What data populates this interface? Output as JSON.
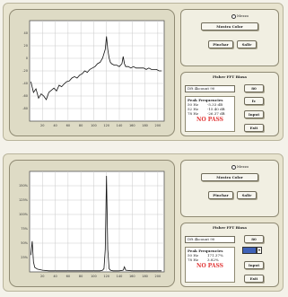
{
  "panels": [
    {
      "scope": {
        "mode_label": "Mezzo",
        "color_button": "Mostra Color",
        "left_button": "Pinchar",
        "right_button": "Salir"
      },
      "fft": {
        "title": "Fisher FFT Biasa",
        "select_value": "Dft 4kcount 90",
        "side_buttons": [
          "80",
          "fc",
          "Input",
          "Exit"
        ],
        "peaks_header": "Peak Frequencies",
        "peaks": [
          {
            "freq": "50 Hz",
            "value": "-5.33 dB"
          },
          {
            "freq": "52 Hz",
            "value": "-15.40 dB"
          },
          {
            "freq": "78 Hz",
            "value": "-26.37 dB"
          }
        ],
        "status": "NO PASS"
      },
      "chart_data": {
        "type": "line",
        "ylabel": "",
        "xlabel": "",
        "xticks": [
          "20",
          "40",
          "60",
          "80",
          "100",
          "120",
          "140",
          "160",
          "180",
          "200"
        ],
        "yticks": [
          "40",
          "20",
          "0",
          "-20",
          "-40",
          "-60",
          "-80"
        ],
        "xlim": [
          0,
          210
        ],
        "ylim": [
          -90,
          50
        ],
        "grid": true,
        "series": [
          {
            "x": [
              2,
              6,
              10,
              14,
              18,
              22,
              26,
              30,
              34,
              38,
              42,
              46,
              50,
              54,
              58,
              62,
              66,
              70,
              74,
              78,
              82,
              86,
              90,
              94,
              98,
              102,
              106,
              110,
              114,
              118,
              120,
              122,
              124,
              126,
              128,
              132,
              136,
              140,
              144,
              146,
              148,
              150,
              154,
              158,
              162,
              166,
              170,
              174,
              178,
              182,
              186,
              190,
              194,
              198,
              202,
              206
            ],
            "y": [
              -35,
              -50,
              -45,
              -58,
              -52,
              -55,
              -60,
              -50,
              -47,
              -44,
              -48,
              -40,
              -42,
              -38,
              -35,
              -34,
              -30,
              -28,
              -30,
              -26,
              -24,
              -20,
              -22,
              -18,
              -16,
              -14,
              -10,
              -8,
              -2,
              10,
              28,
              10,
              -2,
              -8,
              -10,
              -12,
              -12,
              -14,
              -10,
              0,
              -10,
              -14,
              -14,
              -16,
              -14,
              -16,
              -16,
              -16,
              -16,
              -18,
              -16,
              -18,
              -18,
              -18,
              -20,
              -20
            ]
          }
        ]
      }
    },
    {
      "scope": {
        "mode_label": "Mezzo",
        "color_button": "Mostra Color",
        "left_button": "Pinchar",
        "right_button": "Salir"
      },
      "fft": {
        "title": "Fisher FFT Biasa",
        "select_value": "Dft 4kcount 90",
        "side_buttons": [
          "80",
          "fc",
          "Input",
          "Exit"
        ],
        "peaks_header": "Peak Frequencies",
        "peaks": [
          {
            "freq": "50 Hz",
            "value": "171.37%"
          },
          {
            "freq": "78 Hz",
            "value": "3.82%"
          }
        ],
        "status": "NO PASS"
      },
      "chart_data": {
        "type": "line",
        "ylabel": "",
        "xlabel": "",
        "xticks": [
          "20",
          "40",
          "60",
          "80",
          "100",
          "120",
          "140",
          "160",
          "180",
          "200"
        ],
        "yticks": [
          "150%",
          "125%",
          "100%",
          "75%",
          "50%",
          "25%"
        ],
        "xlim": [
          0,
          210
        ],
        "ylim": [
          0,
          180
        ],
        "grid": true,
        "series": [
          {
            "x": [
              2,
              4,
              6,
              8,
              12,
              16,
              20,
              30,
              40,
              50,
              60,
              70,
              80,
              90,
              100,
              110,
              114,
              116,
              118,
              120,
              122,
              124,
              126,
              130,
              140,
              146,
              148,
              150,
              160,
              170,
              180,
              190,
              200,
              206
            ],
            "y": [
              30,
              55,
              18,
              8,
              5,
              4,
              3,
              2,
              2,
              2,
              2,
              2,
              2,
              2,
              2,
              2,
              3,
              6,
              40,
              172,
              40,
              6,
              3,
              2,
              2,
              3,
              9,
              3,
              2,
              2,
              2,
              2,
              2,
              2
            ]
          }
        ]
      }
    }
  ]
}
